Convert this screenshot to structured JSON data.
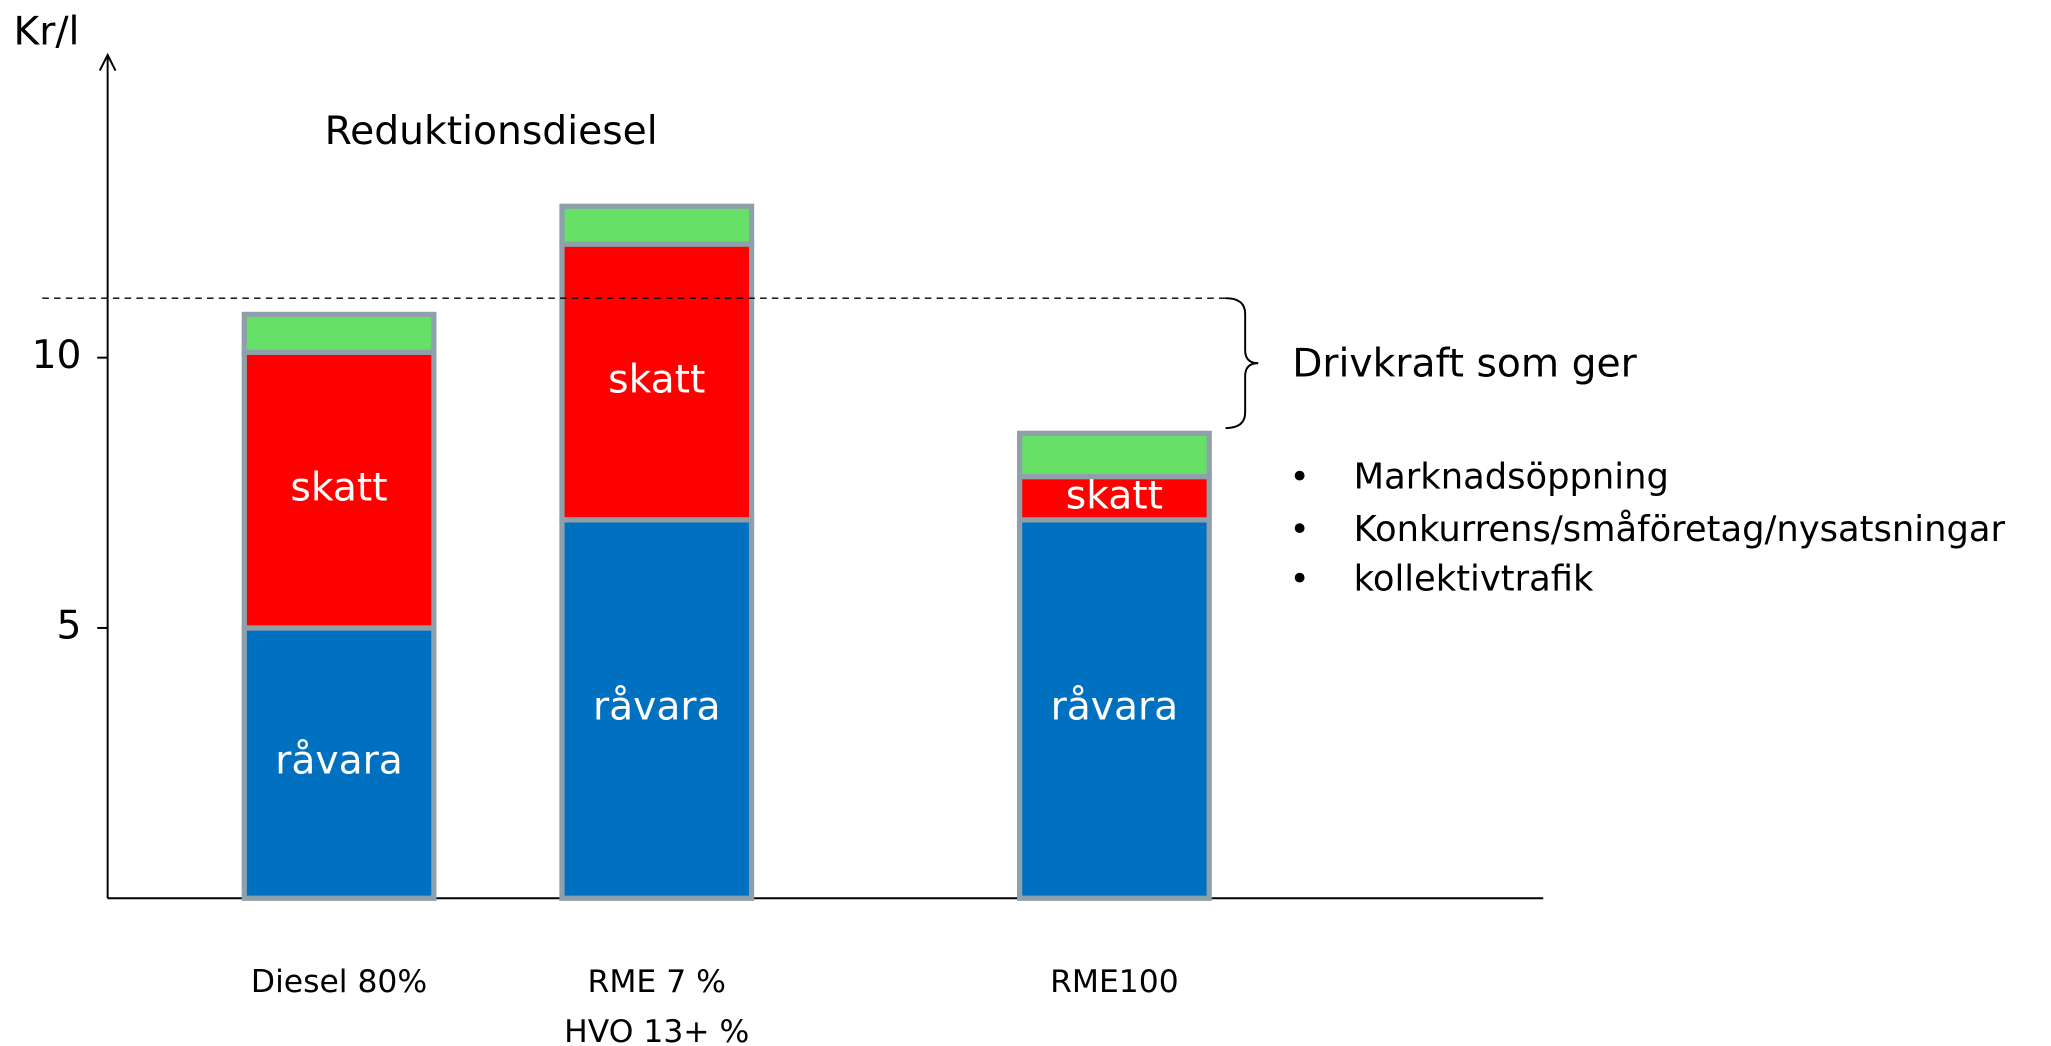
{
  "chart_data": {
    "type": "stacked-bar",
    "title": "Reduktionsdiesel",
    "y_label": "Kr/l",
    "categories": [
      [
        "Diesel 80%"
      ],
      [
        "RME   7 %",
        "HVO 13+ %"
      ],
      [
        "RME100"
      ]
    ],
    "series": [
      {
        "name": "råvara",
        "color": "#0070c0",
        "values": [
          5.0,
          7.0,
          7.0
        ]
      },
      {
        "name": "skatt",
        "color": "#ff0000",
        "values": [
          5.1,
          5.1,
          0.8
        ]
      },
      {
        "color": "#66e066",
        "values": [
          0.7,
          0.7,
          0.8
        ]
      }
    ],
    "ylim": [
      0,
      15.6
    ],
    "yticks": [
      5,
      10
    ],
    "reference_line": 11.1,
    "annotation": "Drivkraft som ger",
    "bullets": [
      "Marknadsöppning",
      "Konkurrens/småföretag/nysatsningar",
      "kollektivtrafik"
    ]
  }
}
